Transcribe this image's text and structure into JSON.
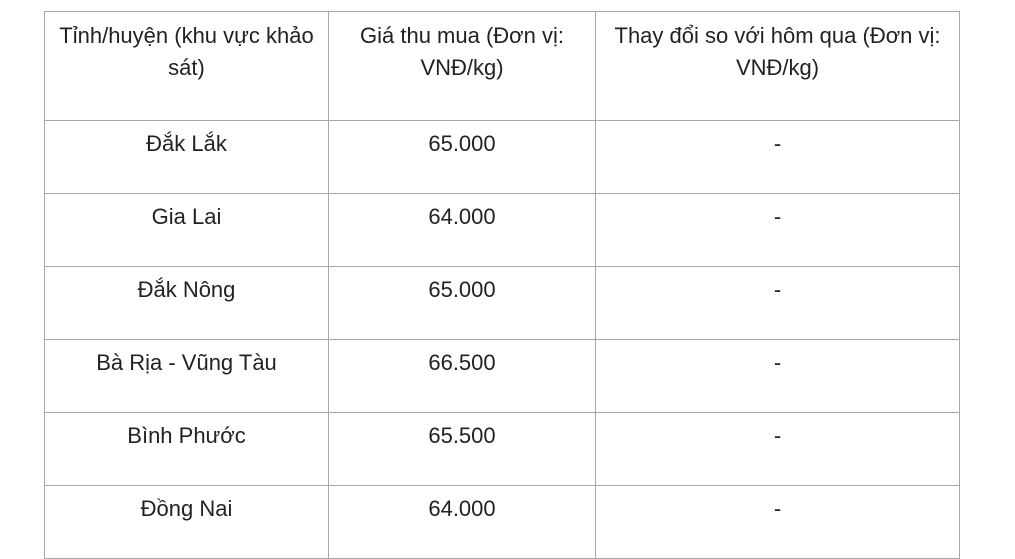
{
  "table": {
    "headers": [
      "Tỉnh/huyện (khu vực khảo sát)",
      "Giá thu mua (Đơn vị: VNĐ/kg)",
      "Thay đổi so với hôm qua (Đơn vị: VNĐ/kg)"
    ],
    "rows": [
      [
        "Đắk Lắk",
        "65.000",
        "-"
      ],
      [
        "Gia Lai",
        "64.000",
        "-"
      ],
      [
        "Đắk Nông",
        "65.000",
        "-"
      ],
      [
        "Bà Rịa - Vũng Tàu",
        "66.500",
        "-"
      ],
      [
        "Bình Phước",
        "65.500",
        "-"
      ],
      [
        "Đồng Nai",
        "64.000",
        "-"
      ]
    ]
  }
}
